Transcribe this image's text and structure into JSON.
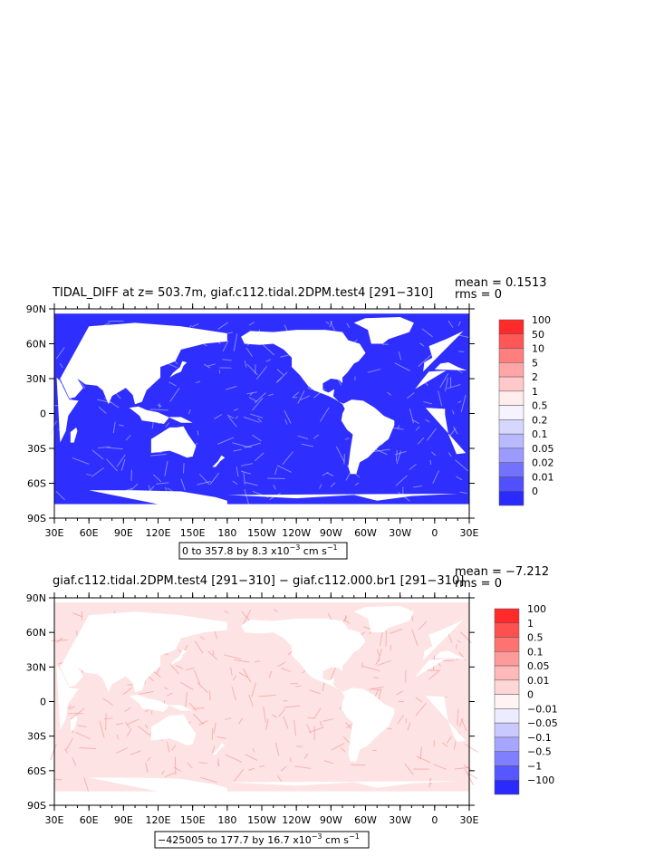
{
  "panels": [
    {
      "title": "TIDAL_DIFF at z= 503.7m, giaf.c112.tidal.2DPM.test4 [291−310]",
      "mean": "mean = 0.1513",
      "rms": "rms = 0",
      "range_prefix": "0 to 357.8 by 8.3 x10",
      "range_exp": "−3",
      "range_units": " cm s",
      "range_units_exp": "−1",
      "colorbar": {
        "labels": [
          "100",
          "50",
          "10",
          "5",
          "2",
          "1",
          "0.5",
          "0.2",
          "0.1",
          "0.05",
          "0.02",
          "0.01",
          "0"
        ],
        "colors": [
          "#ff2a2a",
          "#ff5757",
          "#ff7f7f",
          "#ffa6a6",
          "#ffc9c9",
          "#ffecec",
          "#f6f3ff",
          "#d6d6ff",
          "#b9b9ff",
          "#9a9aff",
          "#7272ff",
          "#5050ff",
          "#2a2aff"
        ]
      },
      "field": {
        "land": "#ffffff",
        "ocean": "#2e2eff",
        "streak": "#c7d2ff"
      }
    },
    {
      "title": "giaf.c112.tidal.2DPM.test4 [291−310] − giaf.c112.000.br1 [291−310]",
      "mean": "mean = −7.212",
      "rms": "rms = 0",
      "range_prefix": "−425005 to 177.7 by 16.7 x10",
      "range_exp": "−3",
      "range_units": " cm s",
      "range_units_exp": "−1",
      "colorbar": {
        "labels": [
          "100",
          "1",
          "0.5",
          "0.1",
          "0.05",
          "0.01",
          "0",
          "−0.01",
          "−0.05",
          "−0.1",
          "−0.5",
          "−1",
          "−100"
        ],
        "colors": [
          "#ff2a2a",
          "#ff5050",
          "#ff7272",
          "#ff9a9a",
          "#ffb9b9",
          "#ffd6d6",
          "#fff3f3",
          "#ecebff",
          "#c9c9ff",
          "#a6a6ff",
          "#7f7fff",
          "#5757ff",
          "#2a2aff"
        ]
      },
      "field": {
        "land": "#ffffff",
        "ocean": "#fde3e3",
        "streak": "#f58a8a"
      }
    }
  ],
  "lat_labels": [
    "90N",
    "60N",
    "30N",
    "0",
    "30S",
    "60S",
    "90S"
  ],
  "lon_labels": [
    "30E",
    "60E",
    "90E",
    "120E",
    "150E",
    "180",
    "150W",
    "120W",
    "90W",
    "60W",
    "30W",
    "0",
    "30E"
  ]
}
